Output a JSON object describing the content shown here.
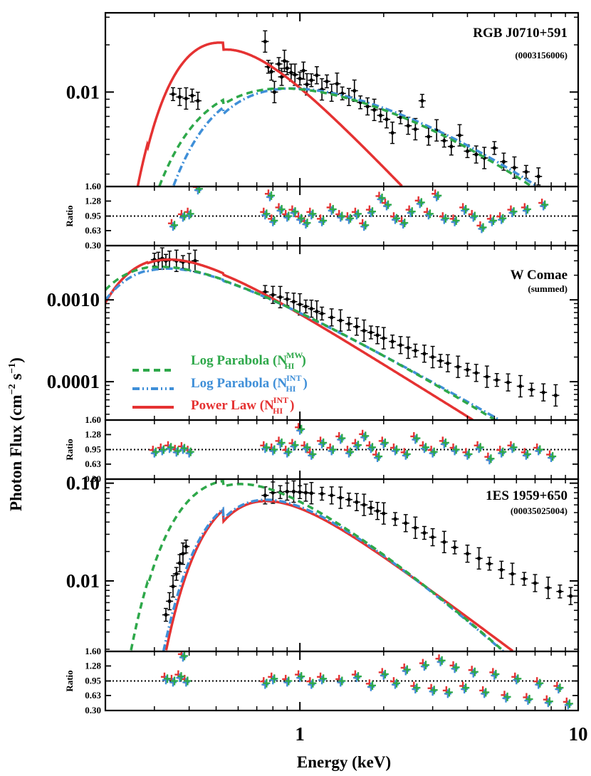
{
  "figure": {
    "ylabel": "Photon Flux (cm",
    "ylabel_exp1": "−2",
    "ylabel_mid": " s",
    "ylabel_exp2": "−1",
    "ylabel_end": ")",
    "xlabel": "Energy (keV)",
    "ratio_label": "Ratio",
    "legend": [
      {
        "text": "Log Parabola (N",
        "sub": "HI",
        "sup": "MW",
        "end": ")",
        "color": "#2ea84a",
        "style": "dashed"
      },
      {
        "text": "Log Parabola (N",
        "sub": "HI",
        "sup": "INT",
        "end": ")",
        "color": "#3f8fd8",
        "style": "dashdot"
      },
      {
        "text": "Power Law (N",
        "sub": "HI",
        "sup": "INT",
        "end": ")",
        "color": "#e53232",
        "style": "solid"
      }
    ],
    "colors": {
      "logpar_mw": "#2ea84a",
      "logpar_int": "#3f8fd8",
      "powerlaw": "#e53232",
      "data": "#000000"
    }
  },
  "chart_data": [
    {
      "type": "scatter",
      "title": "RGB J0710+591",
      "subtitle": "(0003156006)",
      "xscale": "log",
      "yscale": "log",
      "xlim": [
        0.2,
        10
      ],
      "ylim": [
        0.0025,
        0.032
      ],
      "yticks": [
        {
          "v": 0.01,
          "label": "0.01"
        }
      ],
      "models": {
        "logpar_mw": {
          "A": 0.0115,
          "a": 0.42,
          "b": 0.45,
          "nh": 0.052
        },
        "logpar_int": {
          "A": 0.0121,
          "a": 0.46,
          "b": 0.4,
          "nh": 0.075
        },
        "powerlaw": {
          "A": 0.0123,
          "gamma": 1.86,
          "nh": 0.078
        }
      },
      "data_points": [
        [
          0.35,
          0.0097
        ],
        [
          0.37,
          0.0093
        ],
        [
          0.39,
          0.0091
        ],
        [
          0.41,
          0.0095
        ],
        [
          0.43,
          0.0088
        ],
        [
          0.75,
          0.021
        ],
        [
          0.77,
          0.0145
        ],
        [
          0.79,
          0.0135
        ],
        [
          0.81,
          0.01
        ],
        [
          0.84,
          0.0151
        ],
        [
          0.86,
          0.0125
        ],
        [
          0.88,
          0.0158
        ],
        [
          0.9,
          0.0142
        ],
        [
          0.93,
          0.0133
        ],
        [
          0.96,
          0.0129
        ],
        [
          1.0,
          0.0122
        ],
        [
          1.03,
          0.0137
        ],
        [
          1.06,
          0.0112
        ],
        [
          1.1,
          0.0119
        ],
        [
          1.15,
          0.0128
        ],
        [
          1.2,
          0.0104
        ],
        [
          1.25,
          0.0117
        ],
        [
          1.3,
          0.0099
        ],
        [
          1.36,
          0.0113
        ],
        [
          1.42,
          0.0098
        ],
        [
          1.5,
          0.0093
        ],
        [
          1.57,
          0.0102
        ],
        [
          1.65,
          0.0086
        ],
        [
          1.75,
          0.0081
        ],
        [
          1.85,
          0.0077
        ],
        [
          1.95,
          0.0071
        ],
        [
          2.05,
          0.0067
        ],
        [
          2.15,
          0.0055
        ],
        [
          2.3,
          0.0069
        ],
        [
          2.45,
          0.0061
        ],
        [
          2.6,
          0.0058
        ],
        [
          2.75,
          0.0088
        ],
        [
          2.9,
          0.0052
        ],
        [
          3.1,
          0.0057
        ],
        [
          3.3,
          0.0049
        ],
        [
          3.5,
          0.0045
        ],
        [
          3.75,
          0.0053
        ],
        [
          4.0,
          0.0042
        ],
        [
          4.3,
          0.004
        ],
        [
          4.6,
          0.0038
        ],
        [
          5.0,
          0.0044
        ],
        [
          5.4,
          0.0036
        ],
        [
          5.9,
          0.0033
        ],
        [
          6.5,
          0.0031
        ],
        [
          7.2,
          0.0029
        ]
      ],
      "ratio": {
        "ylim": [
          0.3,
          1.6
        ],
        "yticks": [
          "1.60",
          "1.28",
          "0.95",
          "0.63",
          "0.30"
        ],
        "ref": 0.95
      },
      "ratio_points": [
        [
          0.35,
          0.75
        ],
        [
          0.38,
          0.95
        ],
        [
          0.4,
          1.0
        ],
        [
          0.43,
          1.55
        ],
        [
          0.75,
          1.0
        ],
        [
          0.78,
          1.4
        ],
        [
          0.8,
          0.85
        ],
        [
          0.85,
          1.1
        ],
        [
          0.9,
          0.95
        ],
        [
          0.95,
          1.05
        ],
        [
          1.0,
          0.9
        ],
        [
          1.05,
          0.8
        ],
        [
          1.1,
          1.0
        ],
        [
          1.2,
          0.85
        ],
        [
          1.3,
          1.1
        ],
        [
          1.4,
          0.95
        ],
        [
          1.5,
          0.9
        ],
        [
          1.6,
          1.0
        ],
        [
          1.7,
          0.75
        ],
        [
          1.8,
          1.05
        ],
        [
          1.95,
          1.35
        ],
        [
          2.05,
          1.2
        ],
        [
          2.2,
          0.9
        ],
        [
          2.35,
          0.8
        ],
        [
          2.5,
          1.05
        ],
        [
          2.7,
          1.25
        ],
        [
          2.9,
          1.0
        ],
        [
          3.1,
          1.4
        ],
        [
          3.3,
          0.9
        ],
        [
          3.6,
          0.85
        ],
        [
          3.9,
          1.1
        ],
        [
          4.2,
          0.95
        ],
        [
          4.5,
          0.7
        ],
        [
          4.9,
          0.85
        ],
        [
          5.3,
          0.9
        ],
        [
          5.8,
          1.05
        ],
        [
          6.5,
          1.1
        ],
        [
          7.5,
          1.2
        ]
      ]
    },
    {
      "type": "scatter",
      "title": "W Comae",
      "subtitle": "(summed)",
      "xscale": "log",
      "yscale": "log",
      "xlim": [
        0.2,
        10
      ],
      "ylim": [
        3.4e-05,
        0.0046
      ],
      "yticks": [
        {
          "v": 0.001,
          "label": "0.0010"
        },
        {
          "v": 0.0001,
          "label": "0.0001"
        }
      ],
      "models": {
        "logpar_mw": {
          "A": 0.00072,
          "a": 1.72,
          "b": 0.24,
          "nh": 0.018
        },
        "logpar_int": {
          "A": 0.00072,
          "a": 1.74,
          "b": 0.15,
          "nh": 0.022
        },
        "powerlaw": {
          "A": 0.00071,
          "gamma": 2.12,
          "nh": 0.03
        }
      },
      "data_points": [
        [
          0.3,
          0.0031
        ],
        [
          0.31,
          0.003
        ],
        [
          0.32,
          0.0032
        ],
        [
          0.33,
          0.003
        ],
        [
          0.34,
          0.0031
        ],
        [
          0.36,
          0.003
        ],
        [
          0.38,
          0.0029
        ],
        [
          0.4,
          0.0029
        ],
        [
          0.42,
          0.003
        ],
        [
          0.75,
          0.00125
        ],
        [
          0.8,
          0.00115
        ],
        [
          0.85,
          0.00108
        ],
        [
          0.9,
          0.00102
        ],
        [
          0.95,
          0.00095
        ],
        [
          1.0,
          0.00088
        ],
        [
          1.05,
          0.00083
        ],
        [
          1.1,
          0.00078
        ],
        [
          1.15,
          0.00072
        ],
        [
          1.2,
          0.00068
        ],
        [
          1.3,
          0.00061
        ],
        [
          1.4,
          0.00056
        ],
        [
          1.5,
          0.00051
        ],
        [
          1.6,
          0.00047
        ],
        [
          1.7,
          0.00042
        ],
        [
          1.8,
          0.0004
        ],
        [
          1.9,
          0.00037
        ],
        [
          2.0,
          0.00034
        ],
        [
          2.15,
          0.00031
        ],
        [
          2.3,
          0.00028
        ],
        [
          2.45,
          0.00026
        ],
        [
          2.6,
          0.00024
        ],
        [
          2.8,
          0.00022
        ],
        [
          3.0,
          0.0002
        ],
        [
          3.2,
          0.00018
        ],
        [
          3.4,
          0.000168
        ],
        [
          3.7,
          0.000152
        ],
        [
          4.0,
          0.00014
        ],
        [
          4.3,
          0.000128
        ],
        [
          4.7,
          0.000115
        ],
        [
          5.1,
          0.000105
        ],
        [
          5.6,
          9.8e-05
        ],
        [
          6.2,
          8.8e-05
        ],
        [
          6.8,
          8e-05
        ],
        [
          7.5,
          7.4e-05
        ],
        [
          8.3,
          6.8e-05
        ]
      ],
      "ratio": {
        "ylim": [
          0.3,
          1.6
        ],
        "yticks": [
          "1.60",
          "1.28",
          "0.95",
          "0.63",
          "0.30"
        ],
        "ref": 0.95
      },
      "ratio_points": [
        [
          0.3,
          0.9
        ],
        [
          0.32,
          0.95
        ],
        [
          0.34,
          1.0
        ],
        [
          0.36,
          0.92
        ],
        [
          0.38,
          0.98
        ],
        [
          0.4,
          0.9
        ],
        [
          0.75,
          1.0
        ],
        [
          0.8,
          0.95
        ],
        [
          0.85,
          1.1
        ],
        [
          0.9,
          0.9
        ],
        [
          0.95,
          1.05
        ],
        [
          1.0,
          1.4
        ],
        [
          1.05,
          1.0
        ],
        [
          1.1,
          0.85
        ],
        [
          1.2,
          1.1
        ],
        [
          1.3,
          0.95
        ],
        [
          1.4,
          1.2
        ],
        [
          1.5,
          0.9
        ],
        [
          1.6,
          1.05
        ],
        [
          1.7,
          1.25
        ],
        [
          1.8,
          1.0
        ],
        [
          1.9,
          0.8
        ],
        [
          2.0,
          1.1
        ],
        [
          2.2,
          0.95
        ],
        [
          2.4,
          0.85
        ],
        [
          2.6,
          1.2
        ],
        [
          2.8,
          1.0
        ],
        [
          3.0,
          0.9
        ],
        [
          3.3,
          1.1
        ],
        [
          3.6,
          0.95
        ],
        [
          4.0,
          0.85
        ],
        [
          4.4,
          1.0
        ],
        [
          4.8,
          0.75
        ],
        [
          5.3,
          0.9
        ],
        [
          5.8,
          1.0
        ],
        [
          6.5,
          0.85
        ],
        [
          7.2,
          0.95
        ],
        [
          8.0,
          0.8
        ]
      ]
    },
    {
      "type": "scatter",
      "title": "1ES 1959+650",
      "subtitle": "(00035025004)",
      "xscale": "log",
      "yscale": "log",
      "xlim": [
        0.2,
        10
      ],
      "ylim": [
        0.0019,
        0.11
      ],
      "yticks": [
        {
          "v": 0.1,
          "label": "0.10"
        },
        {
          "v": 0.01,
          "label": "0.01"
        }
      ],
      "models": {
        "logpar_mw": {
          "A": 0.078,
          "a": 1.92,
          "b": 0.38,
          "nh": 0.1
        },
        "logpar_int": {
          "A": 0.082,
          "a": 2.0,
          "b": 0.32,
          "nh": 0.19
        },
        "powerlaw": {
          "A": 0.082,
          "gamma": 2.13,
          "nh": 0.21
        }
      },
      "data_points": [
        [
          0.33,
          0.0045
        ],
        [
          0.34,
          0.0062
        ],
        [
          0.35,
          0.0088
        ],
        [
          0.36,
          0.0118
        ],
        [
          0.37,
          0.0152
        ],
        [
          0.38,
          0.019
        ],
        [
          0.39,
          0.0225
        ],
        [
          0.75,
          0.075
        ],
        [
          0.8,
          0.08
        ],
        [
          0.85,
          0.081
        ],
        [
          0.9,
          0.082
        ],
        [
          0.95,
          0.082
        ],
        [
          1.0,
          0.081
        ],
        [
          1.05,
          0.08
        ],
        [
          1.1,
          0.079
        ],
        [
          1.2,
          0.078
        ],
        [
          1.3,
          0.075
        ],
        [
          1.4,
          0.071
        ],
        [
          1.5,
          0.068
        ],
        [
          1.6,
          0.064
        ],
        [
          1.7,
          0.06
        ],
        [
          1.8,
          0.056
        ],
        [
          1.9,
          0.052
        ],
        [
          2.0,
          0.049
        ],
        [
          2.2,
          0.043
        ],
        [
          2.4,
          0.039
        ],
        [
          2.6,
          0.035
        ],
        [
          2.8,
          0.031
        ],
        [
          3.0,
          0.028
        ],
        [
          3.3,
          0.025
        ],
        [
          3.6,
          0.022
        ],
        [
          4.0,
          0.019
        ],
        [
          4.4,
          0.017
        ],
        [
          4.8,
          0.015
        ],
        [
          5.3,
          0.013
        ],
        [
          5.8,
          0.0118
        ],
        [
          6.4,
          0.0105
        ],
        [
          7.0,
          0.0095
        ],
        [
          7.8,
          0.0085
        ],
        [
          8.6,
          0.0078
        ],
        [
          9.4,
          0.007
        ]
      ],
      "ratio": {
        "ylim": [
          0.3,
          1.6
        ],
        "yticks": [
          "1.60",
          "1.28",
          "0.95",
          "0.63",
          "0.30"
        ],
        "ref": 0.95
      },
      "ratio_points": [
        [
          0.33,
          1.0
        ],
        [
          0.35,
          0.95
        ],
        [
          0.37,
          1.05
        ],
        [
          0.38,
          1.5
        ],
        [
          0.39,
          0.95
        ],
        [
          0.75,
          0.9
        ],
        [
          0.8,
          1.0
        ],
        [
          0.9,
          0.95
        ],
        [
          1.0,
          1.05
        ],
        [
          1.1,
          0.9
        ],
        [
          1.2,
          1.0
        ],
        [
          1.4,
          0.95
        ],
        [
          1.6,
          1.05
        ],
        [
          1.8,
          0.85
        ],
        [
          2.0,
          1.1
        ],
        [
          2.2,
          0.9
        ],
        [
          2.4,
          1.2
        ],
        [
          2.6,
          0.8
        ],
        [
          2.8,
          1.3
        ],
        [
          3.0,
          0.75
        ],
        [
          3.2,
          1.4
        ],
        [
          3.4,
          0.7
        ],
        [
          3.6,
          1.25
        ],
        [
          3.9,
          0.8
        ],
        [
          4.2,
          1.15
        ],
        [
          4.6,
          0.7
        ],
        [
          5.0,
          1.1
        ],
        [
          5.5,
          0.6
        ],
        [
          6.0,
          1.0
        ],
        [
          6.6,
          0.55
        ],
        [
          7.2,
          0.9
        ],
        [
          7.8,
          0.5
        ],
        [
          8.5,
          0.8
        ],
        [
          9.2,
          0.45
        ]
      ]
    }
  ]
}
